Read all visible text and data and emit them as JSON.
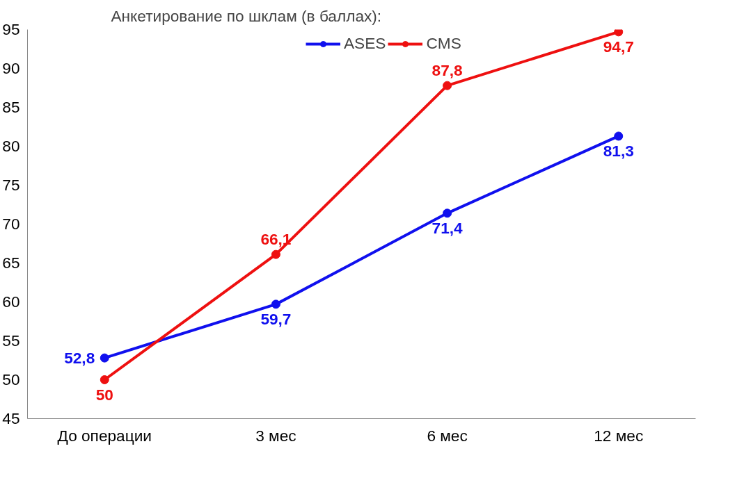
{
  "chart_data": {
    "type": "line",
    "title": "Анкетирование по шклам (в баллах):",
    "categories": [
      "До операции",
      "3 мес",
      "6 мес",
      "12 мес"
    ],
    "series": [
      {
        "name": "ASES",
        "color": "#1010ee",
        "values": [
          52.8,
          59.7,
          71.4,
          81.3
        ],
        "value_labels": [
          "52,8",
          "59,7",
          "71,4",
          "81,3"
        ]
      },
      {
        "name": "CMS",
        "color": "#ee1010",
        "values": [
          50,
          66.1,
          87.8,
          94.7
        ],
        "value_labels": [
          "50",
          "66,1",
          "87,8",
          "94,7"
        ]
      }
    ],
    "ylim": [
      45,
      95
    ],
    "yticks": [
      45,
      50,
      55,
      60,
      65,
      70,
      75,
      80,
      85,
      90,
      95
    ],
    "grid": false,
    "legend": "top",
    "marker": "circle",
    "line_style": "solid"
  }
}
